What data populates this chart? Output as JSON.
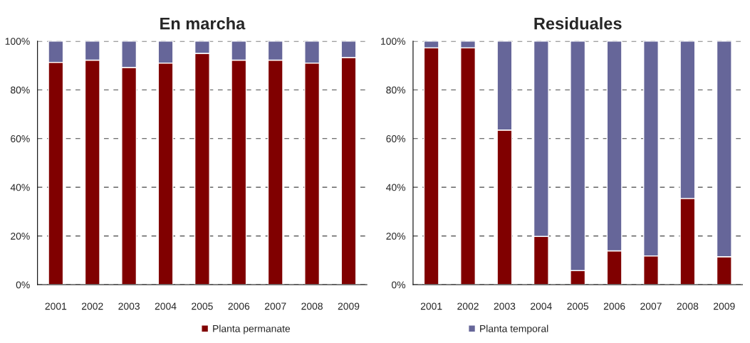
{
  "chart_data": [
    {
      "type": "bar",
      "title": "En marcha",
      "stacked": true,
      "categories": [
        "2001",
        "2002",
        "2003",
        "2004",
        "2005",
        "2006",
        "2007",
        "2008",
        "2009"
      ],
      "series": [
        {
          "name": "Planta permanate",
          "color": "#800000",
          "values": [
            91.3,
            92.2,
            89.2,
            91.0,
            95.0,
            92.2,
            92.2,
            91.0,
            93.3
          ]
        },
        {
          "name": "Planta temporal",
          "color": "#666699",
          "values": [
            8.7,
            7.8,
            10.8,
            9.0,
            5.0,
            7.8,
            7.8,
            9.0,
            6.7
          ]
        }
      ],
      "ylim": [
        0,
        100
      ],
      "yticks": [
        {
          "value": 0,
          "label": "0%"
        },
        {
          "value": 20,
          "label": "20%"
        },
        {
          "value": 40,
          "label": "40%"
        },
        {
          "value": 60,
          "label": "60%"
        },
        {
          "value": 80,
          "label": "80%"
        },
        {
          "value": 100,
          "label": "100%"
        }
      ],
      "grid": "y",
      "legend": "bottom"
    },
    {
      "type": "bar",
      "title": "Residuales",
      "stacked": true,
      "categories": [
        "2001",
        "2002",
        "2003",
        "2004",
        "2005",
        "2006",
        "2007",
        "2008",
        "2009"
      ],
      "series": [
        {
          "name": "Planta permanate",
          "color": "#800000",
          "values": [
            97.3,
            97.3,
            63.5,
            19.8,
            5.8,
            13.9,
            11.8,
            35.4,
            11.5
          ]
        },
        {
          "name": "Planta temporal",
          "color": "#666699",
          "values": [
            2.7,
            2.7,
            36.5,
            80.2,
            94.2,
            86.1,
            88.2,
            64.6,
            88.5
          ]
        }
      ],
      "ylim": [
        0,
        100
      ],
      "yticks": [
        {
          "value": 0,
          "label": "0%"
        },
        {
          "value": 20,
          "label": "20%"
        },
        {
          "value": 40,
          "label": "40%"
        },
        {
          "value": 60,
          "label": "60%"
        },
        {
          "value": 80,
          "label": "80%"
        },
        {
          "value": 100,
          "label": "100%"
        }
      ],
      "grid": "y",
      "legend": "bottom"
    }
  ]
}
